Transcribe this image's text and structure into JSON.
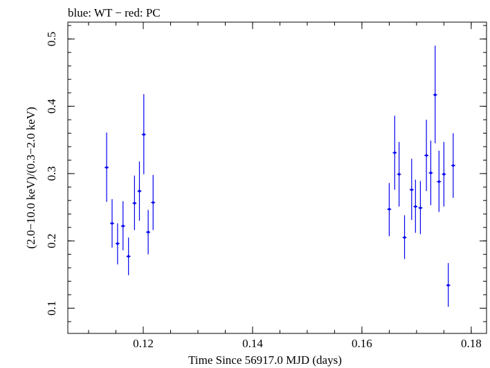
{
  "chart_data": {
    "type": "scatter",
    "title": "blue: WT − red: PC",
    "xlabel": "Time Since 56917.0 MJD (days)",
    "ylabel": "(2.0−10.0 keV)/(0.3−2.0 keV)",
    "xlim": [
      0.1062,
      0.1828
    ],
    "ylim": [
      0.0625,
      0.525
    ],
    "xticks": [
      0.12,
      0.14,
      0.16,
      0.18
    ],
    "xtick_labels": [
      "0.12",
      "0.14",
      "0.16",
      "0.18"
    ],
    "yticks": [
      0.1,
      0.2,
      0.3,
      0.4,
      0.5
    ],
    "ytick_labels": [
      "0.1",
      "0.2",
      "0.3",
      "0.4",
      "0.5"
    ],
    "grid": false,
    "series": [
      {
        "color": "#0000ee",
        "points": [
          {
            "x": 0.1133,
            "y": 0.309,
            "ylo": 0.258,
            "yhi": 0.361
          },
          {
            "x": 0.1143,
            "y": 0.226,
            "ylo": 0.19,
            "yhi": 0.262
          },
          {
            "x": 0.1153,
            "y": 0.196,
            "ylo": 0.165,
            "yhi": 0.226
          },
          {
            "x": 0.1163,
            "y": 0.222,
            "ylo": 0.186,
            "yhi": 0.259
          },
          {
            "x": 0.1173,
            "y": 0.177,
            "ylo": 0.149,
            "yhi": 0.205
          },
          {
            "x": 0.1184,
            "y": 0.256,
            "ylo": 0.216,
            "yhi": 0.297
          },
          {
            "x": 0.1193,
            "y": 0.274,
            "ylo": 0.23,
            "yhi": 0.318
          },
          {
            "x": 0.1201,
            "y": 0.358,
            "ylo": 0.299,
            "yhi": 0.418
          },
          {
            "x": 0.1209,
            "y": 0.213,
            "ylo": 0.18,
            "yhi": 0.246
          },
          {
            "x": 0.1218,
            "y": 0.257,
            "ylo": 0.216,
            "yhi": 0.298
          },
          {
            "x": 0.165,
            "y": 0.247,
            "ylo": 0.207,
            "yhi": 0.286
          },
          {
            "x": 0.166,
            "y": 0.331,
            "ylo": 0.276,
            "yhi": 0.386
          },
          {
            "x": 0.1668,
            "y": 0.299,
            "ylo": 0.251,
            "yhi": 0.347
          },
          {
            "x": 0.1678,
            "y": 0.205,
            "ylo": 0.173,
            "yhi": 0.238
          },
          {
            "x": 0.1691,
            "y": 0.276,
            "ylo": 0.231,
            "yhi": 0.322
          },
          {
            "x": 0.1698,
            "y": 0.251,
            "ylo": 0.212,
            "yhi": 0.291
          },
          {
            "x": 0.1707,
            "y": 0.249,
            "ylo": 0.21,
            "yhi": 0.289
          },
          {
            "x": 0.1718,
            "y": 0.327,
            "ylo": 0.274,
            "yhi": 0.38
          },
          {
            "x": 0.1726,
            "y": 0.301,
            "ylo": 0.253,
            "yhi": 0.349
          },
          {
            "x": 0.1734,
            "y": 0.417,
            "ylo": 0.345,
            "yhi": 0.49
          },
          {
            "x": 0.1741,
            "y": 0.288,
            "ylo": 0.243,
            "yhi": 0.334
          },
          {
            "x": 0.175,
            "y": 0.299,
            "ylo": 0.251,
            "yhi": 0.347
          },
          {
            "x": 0.1758,
            "y": 0.134,
            "ylo": 0.102,
            "yhi": 0.167
          },
          {
            "x": 0.1767,
            "y": 0.312,
            "ylo": 0.264,
            "yhi": 0.36
          }
        ]
      }
    ]
  }
}
